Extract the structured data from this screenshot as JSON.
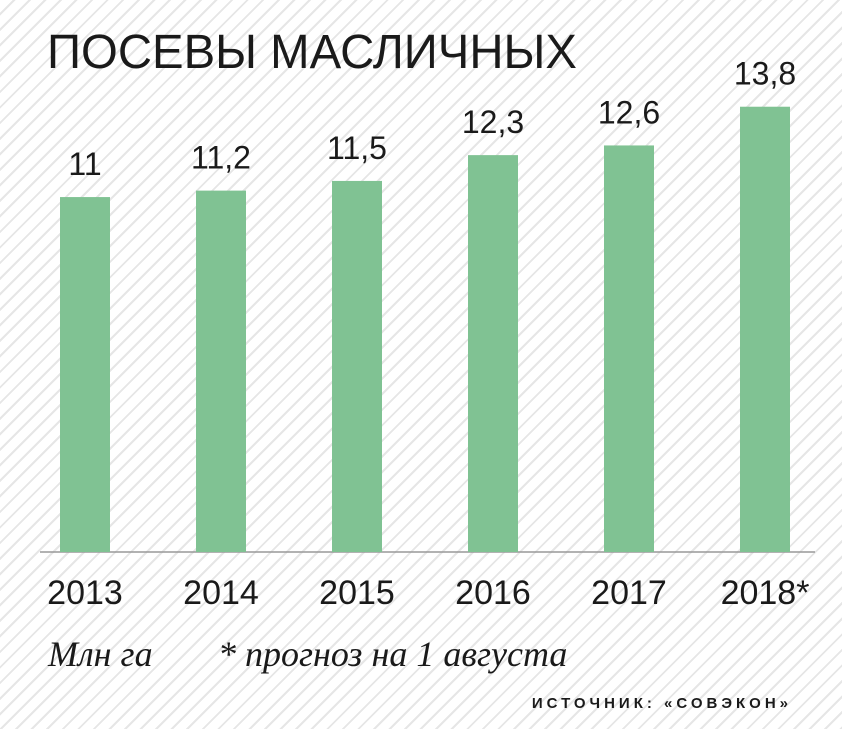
{
  "chart_data": {
    "type": "bar",
    "title": "ПОСЕВЫ МАСЛИЧНЫХ",
    "categories": [
      "2013",
      "2014",
      "2015",
      "2016",
      "2017",
      "2018*"
    ],
    "values": [
      11,
      11.2,
      11.5,
      12.3,
      12.6,
      13.8
    ],
    "value_labels": [
      "11",
      "11,2",
      "11,5",
      "12,3",
      "12,6",
      "13,8"
    ],
    "color": "#80c293",
    "ylim": [
      0,
      15
    ],
    "unit": "Млн га",
    "note": "* прогноз на 1 августа",
    "source": "ИСТОЧНИК: «СОВЭКОН»"
  }
}
